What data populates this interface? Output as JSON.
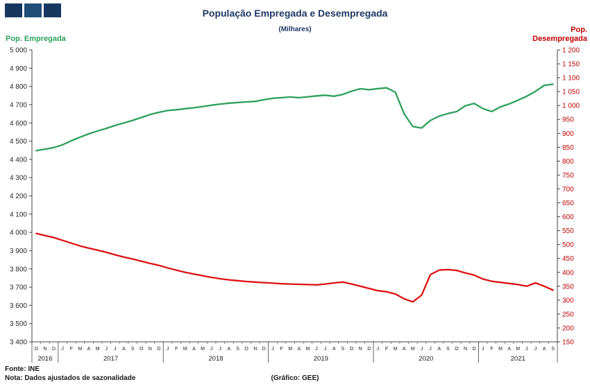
{
  "header": {
    "title": "População Empregada e Desempregada",
    "subtitle": "(Milhares)"
  },
  "logo": {
    "description": "three-blue-squares-logo",
    "colors": [
      "#17375E",
      "#1F4E79",
      "#17375E"
    ]
  },
  "footer": {
    "source": "Fonte: INE",
    "note": "Nota: Dados ajustados de sazonalidade",
    "credit": "(Gráfico: GEE)"
  },
  "chart_data": {
    "type": "line",
    "title": "População Empregada e Desempregada",
    "subtitle": "(Milhares)",
    "grid": false,
    "legend_position": "none",
    "left_axis": {
      "label": "Pop. Empregada",
      "min": 3400,
      "max": 5000,
      "step": 100,
      "title_color": "#2BA05A",
      "tick_label_color": "#262626"
    },
    "right_axis": {
      "label": "Pop. Desempregada",
      "min": 150,
      "max": 1200,
      "step": 50,
      "title_color": "#C00000",
      "tick_label_color": "#C00000"
    },
    "x_labels": [
      "O",
      "N",
      "D",
      "J",
      "F",
      "M",
      "A",
      "M",
      "J",
      "J",
      "A",
      "S",
      "O",
      "N",
      "D",
      "J",
      "F",
      "M",
      "A",
      "M",
      "J",
      "J",
      "A",
      "S",
      "O",
      "N",
      "D",
      "J",
      "F",
      "M",
      "A",
      "M",
      "J",
      "J",
      "A",
      "S",
      "O",
      "N",
      "D",
      "J",
      "F",
      "M",
      "A",
      "M",
      "J",
      "J",
      "A",
      "S",
      "O",
      "N",
      "D",
      "J",
      "F",
      "M",
      "A",
      "M",
      "J",
      "J",
      "A",
      "S"
    ],
    "year_groups": [
      {
        "label": "2016",
        "months": 3
      },
      {
        "label": "2017",
        "months": 12
      },
      {
        "label": "2018",
        "months": 12
      },
      {
        "label": "2019",
        "months": 12
      },
      {
        "label": "2020",
        "months": 12
      },
      {
        "label": "2021",
        "months": 9
      }
    ],
    "series": [
      {
        "name": "Pop. Empregada",
        "axis": "left",
        "color": "#2BA05A",
        "values": [
          4448,
          4456,
          4465,
          4480,
          4502,
          4522,
          4540,
          4556,
          4570,
          4586,
          4600,
          4614,
          4630,
          4646,
          4658,
          4668,
          4672,
          4678,
          4683,
          4690,
          4697,
          4703,
          4708,
          4712,
          4715,
          4718,
          4727,
          4735,
          4738,
          4742,
          4738,
          4743,
          4748,
          4752,
          4746,
          4756,
          4774,
          4787,
          4782,
          4788,
          4792,
          4768,
          4650,
          4580,
          4572,
          4614,
          4637,
          4651,
          4662,
          4694,
          4707,
          4678,
          4662,
          4688,
          4704,
          4724,
          4746,
          4773,
          4806,
          4812
        ]
      },
      {
        "name": "Pop. Desempregada",
        "axis": "right",
        "color": "#DD1111",
        "values": [
          540,
          532,
          525,
          515,
          505,
          495,
          487,
          480,
          472,
          463,
          455,
          448,
          440,
          432,
          425,
          416,
          408,
          400,
          394,
          388,
          382,
          377,
          373,
          370,
          367,
          365,
          363,
          361,
          359,
          358,
          357,
          356,
          355,
          358,
          362,
          365,
          358,
          350,
          342,
          334,
          330,
          322,
          305,
          294,
          318,
          392,
          408,
          410,
          407,
          398,
          390,
          376,
          368,
          364,
          360,
          356,
          350,
          362,
          350,
          336
        ]
      }
    ]
  }
}
